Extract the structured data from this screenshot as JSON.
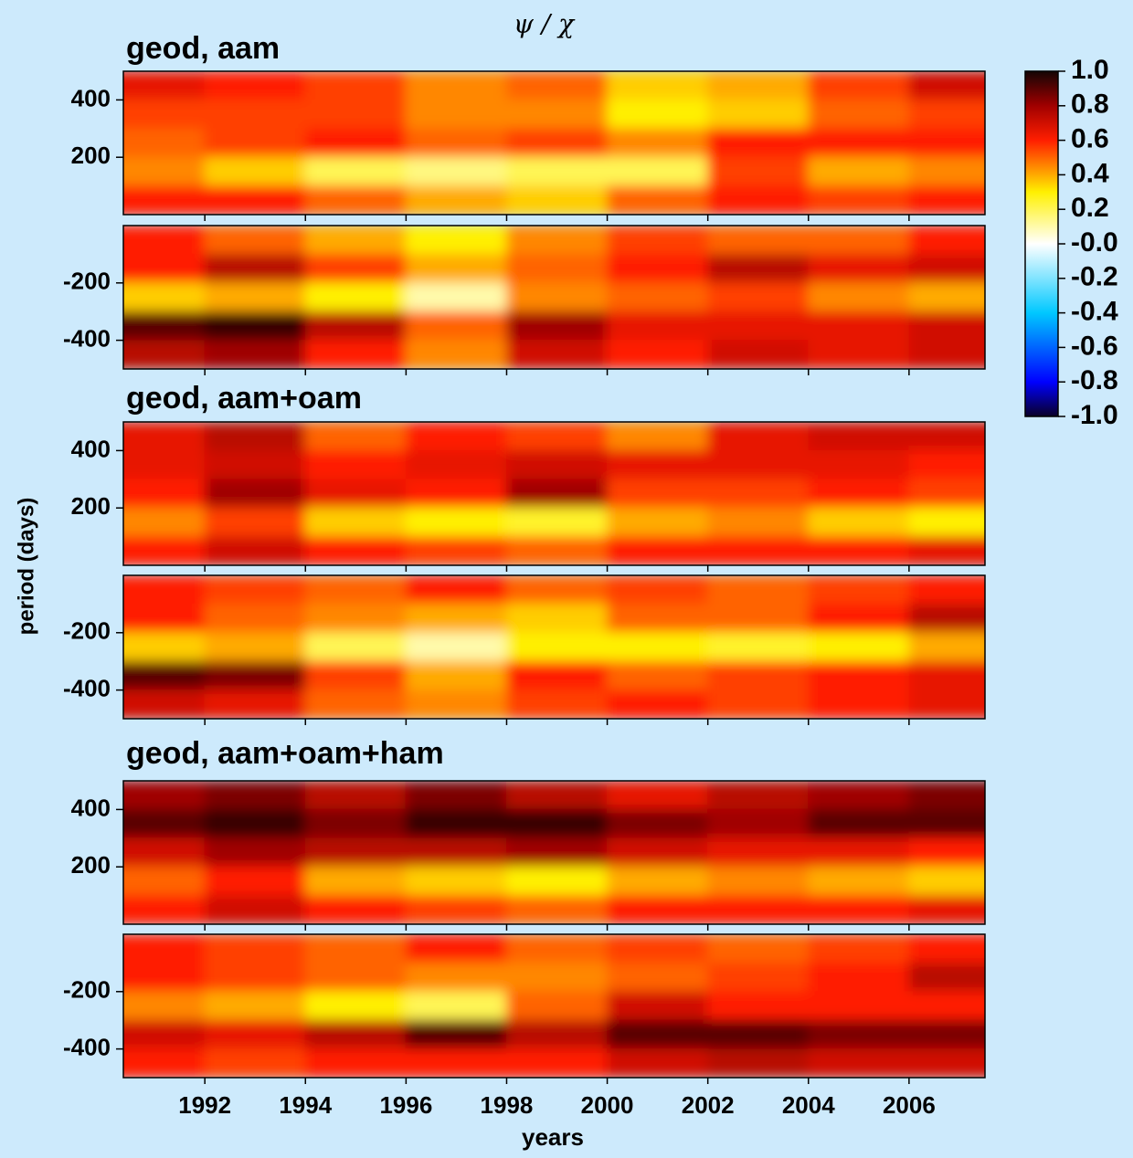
{
  "title": "ψ / χ",
  "xlabel": "years",
  "ylabel": "period (days)",
  "xlim": [
    1990.38,
    2007.51
  ],
  "xticks": [
    1992,
    1994,
    1996,
    1998,
    2000,
    2002,
    2004,
    2006
  ],
  "x": [
    1991,
    1993,
    1995,
    1997,
    1999,
    2001,
    2003,
    2005,
    2007
  ],
  "colorbar": {
    "lim": [
      -1,
      1
    ],
    "ticks": [
      {
        "value": 1,
        "label": "1.0"
      },
      {
        "value": 0.8,
        "label": "0.8"
      },
      {
        "value": 0.6,
        "label": "0.6"
      },
      {
        "value": 0.4,
        "label": "0.4"
      },
      {
        "value": 0.2,
        "label": "0.2"
      },
      {
        "value": 0,
        "label": "-0.0"
      },
      {
        "value": -0.2,
        "label": "-0.2"
      },
      {
        "value": -0.4,
        "label": "-0.4"
      },
      {
        "value": -0.6,
        "label": "-0.6"
      },
      {
        "value": -0.8,
        "label": "-0.8"
      },
      {
        "value": -1,
        "label": "-1.0"
      }
    ]
  },
  "chart_data": [
    {
      "type": "heatmap",
      "title": "geod, aam",
      "panels": [
        {
          "ylim": [
            0,
            500
          ],
          "yticks": [
            200,
            400
          ],
          "y": [
            450,
            350,
            250,
            150,
            50
          ],
          "z": [
            [
              0.65,
              0.6,
              0.55,
              0.45,
              0.5,
              0.35,
              0.4,
              0.55,
              0.7
            ],
            [
              0.55,
              0.55,
              0.55,
              0.45,
              0.45,
              0.3,
              0.35,
              0.5,
              0.55
            ],
            [
              0.5,
              0.55,
              0.6,
              0.5,
              0.55,
              0.45,
              0.6,
              0.6,
              0.6
            ],
            [
              0.45,
              0.35,
              0.2,
              0.15,
              0.2,
              0.2,
              0.55,
              0.4,
              0.45
            ],
            [
              0.6,
              0.6,
              0.5,
              0.4,
              0.35,
              0.5,
              0.6,
              0.55,
              0.6
            ]
          ]
        },
        {
          "ylim": [
            -500,
            0
          ],
          "yticks": [
            -400,
            -200
          ],
          "y": [
            -50,
            -150,
            -250,
            -350,
            -450
          ],
          "z": [
            [
              0.6,
              0.5,
              0.4,
              0.3,
              0.45,
              0.55,
              0.5,
              0.5,
              0.6
            ],
            [
              0.6,
              0.75,
              0.55,
              0.4,
              0.5,
              0.6,
              0.75,
              0.65,
              0.7
            ],
            [
              0.35,
              0.4,
              0.3,
              0.1,
              0.45,
              0.5,
              0.55,
              0.45,
              0.4
            ],
            [
              0.9,
              0.95,
              0.75,
              0.5,
              0.8,
              0.65,
              0.65,
              0.65,
              0.7
            ],
            [
              0.75,
              0.8,
              0.6,
              0.45,
              0.7,
              0.6,
              0.7,
              0.65,
              0.7
            ]
          ]
        }
      ]
    },
    {
      "type": "heatmap",
      "title": "geod, aam+oam",
      "panels": [
        {
          "ylim": [
            0,
            500
          ],
          "yticks": [
            200,
            400
          ],
          "y": [
            450,
            350,
            250,
            150,
            50
          ],
          "z": [
            [
              0.65,
              0.75,
              0.5,
              0.6,
              0.55,
              0.45,
              0.65,
              0.7,
              0.7
            ],
            [
              0.65,
              0.7,
              0.6,
              0.65,
              0.7,
              0.65,
              0.65,
              0.65,
              0.6
            ],
            [
              0.6,
              0.8,
              0.65,
              0.6,
              0.8,
              0.55,
              0.55,
              0.6,
              0.55
            ],
            [
              0.45,
              0.55,
              0.35,
              0.3,
              0.25,
              0.4,
              0.45,
              0.35,
              0.3
            ],
            [
              0.6,
              0.7,
              0.6,
              0.55,
              0.5,
              0.6,
              0.6,
              0.6,
              0.65
            ]
          ]
        },
        {
          "ylim": [
            -500,
            0
          ],
          "yticks": [
            -400,
            -200
          ],
          "y": [
            -50,
            -150,
            -250,
            -350,
            -450
          ],
          "z": [
            [
              0.6,
              0.55,
              0.5,
              0.6,
              0.5,
              0.55,
              0.5,
              0.55,
              0.6
            ],
            [
              0.6,
              0.5,
              0.45,
              0.4,
              0.35,
              0.5,
              0.5,
              0.6,
              0.75
            ],
            [
              0.35,
              0.4,
              0.2,
              0.1,
              0.3,
              0.3,
              0.25,
              0.3,
              0.4
            ],
            [
              0.9,
              0.85,
              0.55,
              0.4,
              0.6,
              0.5,
              0.55,
              0.6,
              0.65
            ],
            [
              0.7,
              0.65,
              0.5,
              0.45,
              0.55,
              0.6,
              0.55,
              0.6,
              0.65
            ]
          ]
        }
      ]
    },
    {
      "type": "heatmap",
      "title": "geod, aam+oam+ham",
      "panels": [
        {
          "ylim": [
            0,
            500
          ],
          "yticks": [
            200,
            400
          ],
          "y": [
            450,
            350,
            250,
            150,
            50
          ],
          "z": [
            [
              0.8,
              0.85,
              0.75,
              0.85,
              0.75,
              0.65,
              0.75,
              0.8,
              0.85
            ],
            [
              0.9,
              0.95,
              0.85,
              0.95,
              0.95,
              0.85,
              0.8,
              0.9,
              0.9
            ],
            [
              0.7,
              0.8,
              0.75,
              0.75,
              0.8,
              0.7,
              0.65,
              0.65,
              0.6
            ],
            [
              0.5,
              0.6,
              0.4,
              0.35,
              0.3,
              0.4,
              0.45,
              0.4,
              0.35
            ],
            [
              0.6,
              0.7,
              0.6,
              0.55,
              0.5,
              0.6,
              0.6,
              0.6,
              0.65
            ]
          ]
        },
        {
          "ylim": [
            -500,
            0
          ],
          "yticks": [
            -400,
            -200
          ],
          "y": [
            -50,
            -150,
            -250,
            -350,
            -450
          ],
          "z": [
            [
              0.6,
              0.55,
              0.5,
              0.6,
              0.5,
              0.55,
              0.5,
              0.55,
              0.6
            ],
            [
              0.6,
              0.55,
              0.5,
              0.45,
              0.45,
              0.5,
              0.55,
              0.6,
              0.75
            ],
            [
              0.45,
              0.4,
              0.3,
              0.2,
              0.5,
              0.7,
              0.6,
              0.6,
              0.6
            ],
            [
              0.7,
              0.65,
              0.75,
              0.9,
              0.75,
              0.9,
              0.9,
              0.85,
              0.85
            ],
            [
              0.6,
              0.55,
              0.6,
              0.6,
              0.6,
              0.7,
              0.75,
              0.7,
              0.7
            ]
          ]
        }
      ]
    }
  ]
}
